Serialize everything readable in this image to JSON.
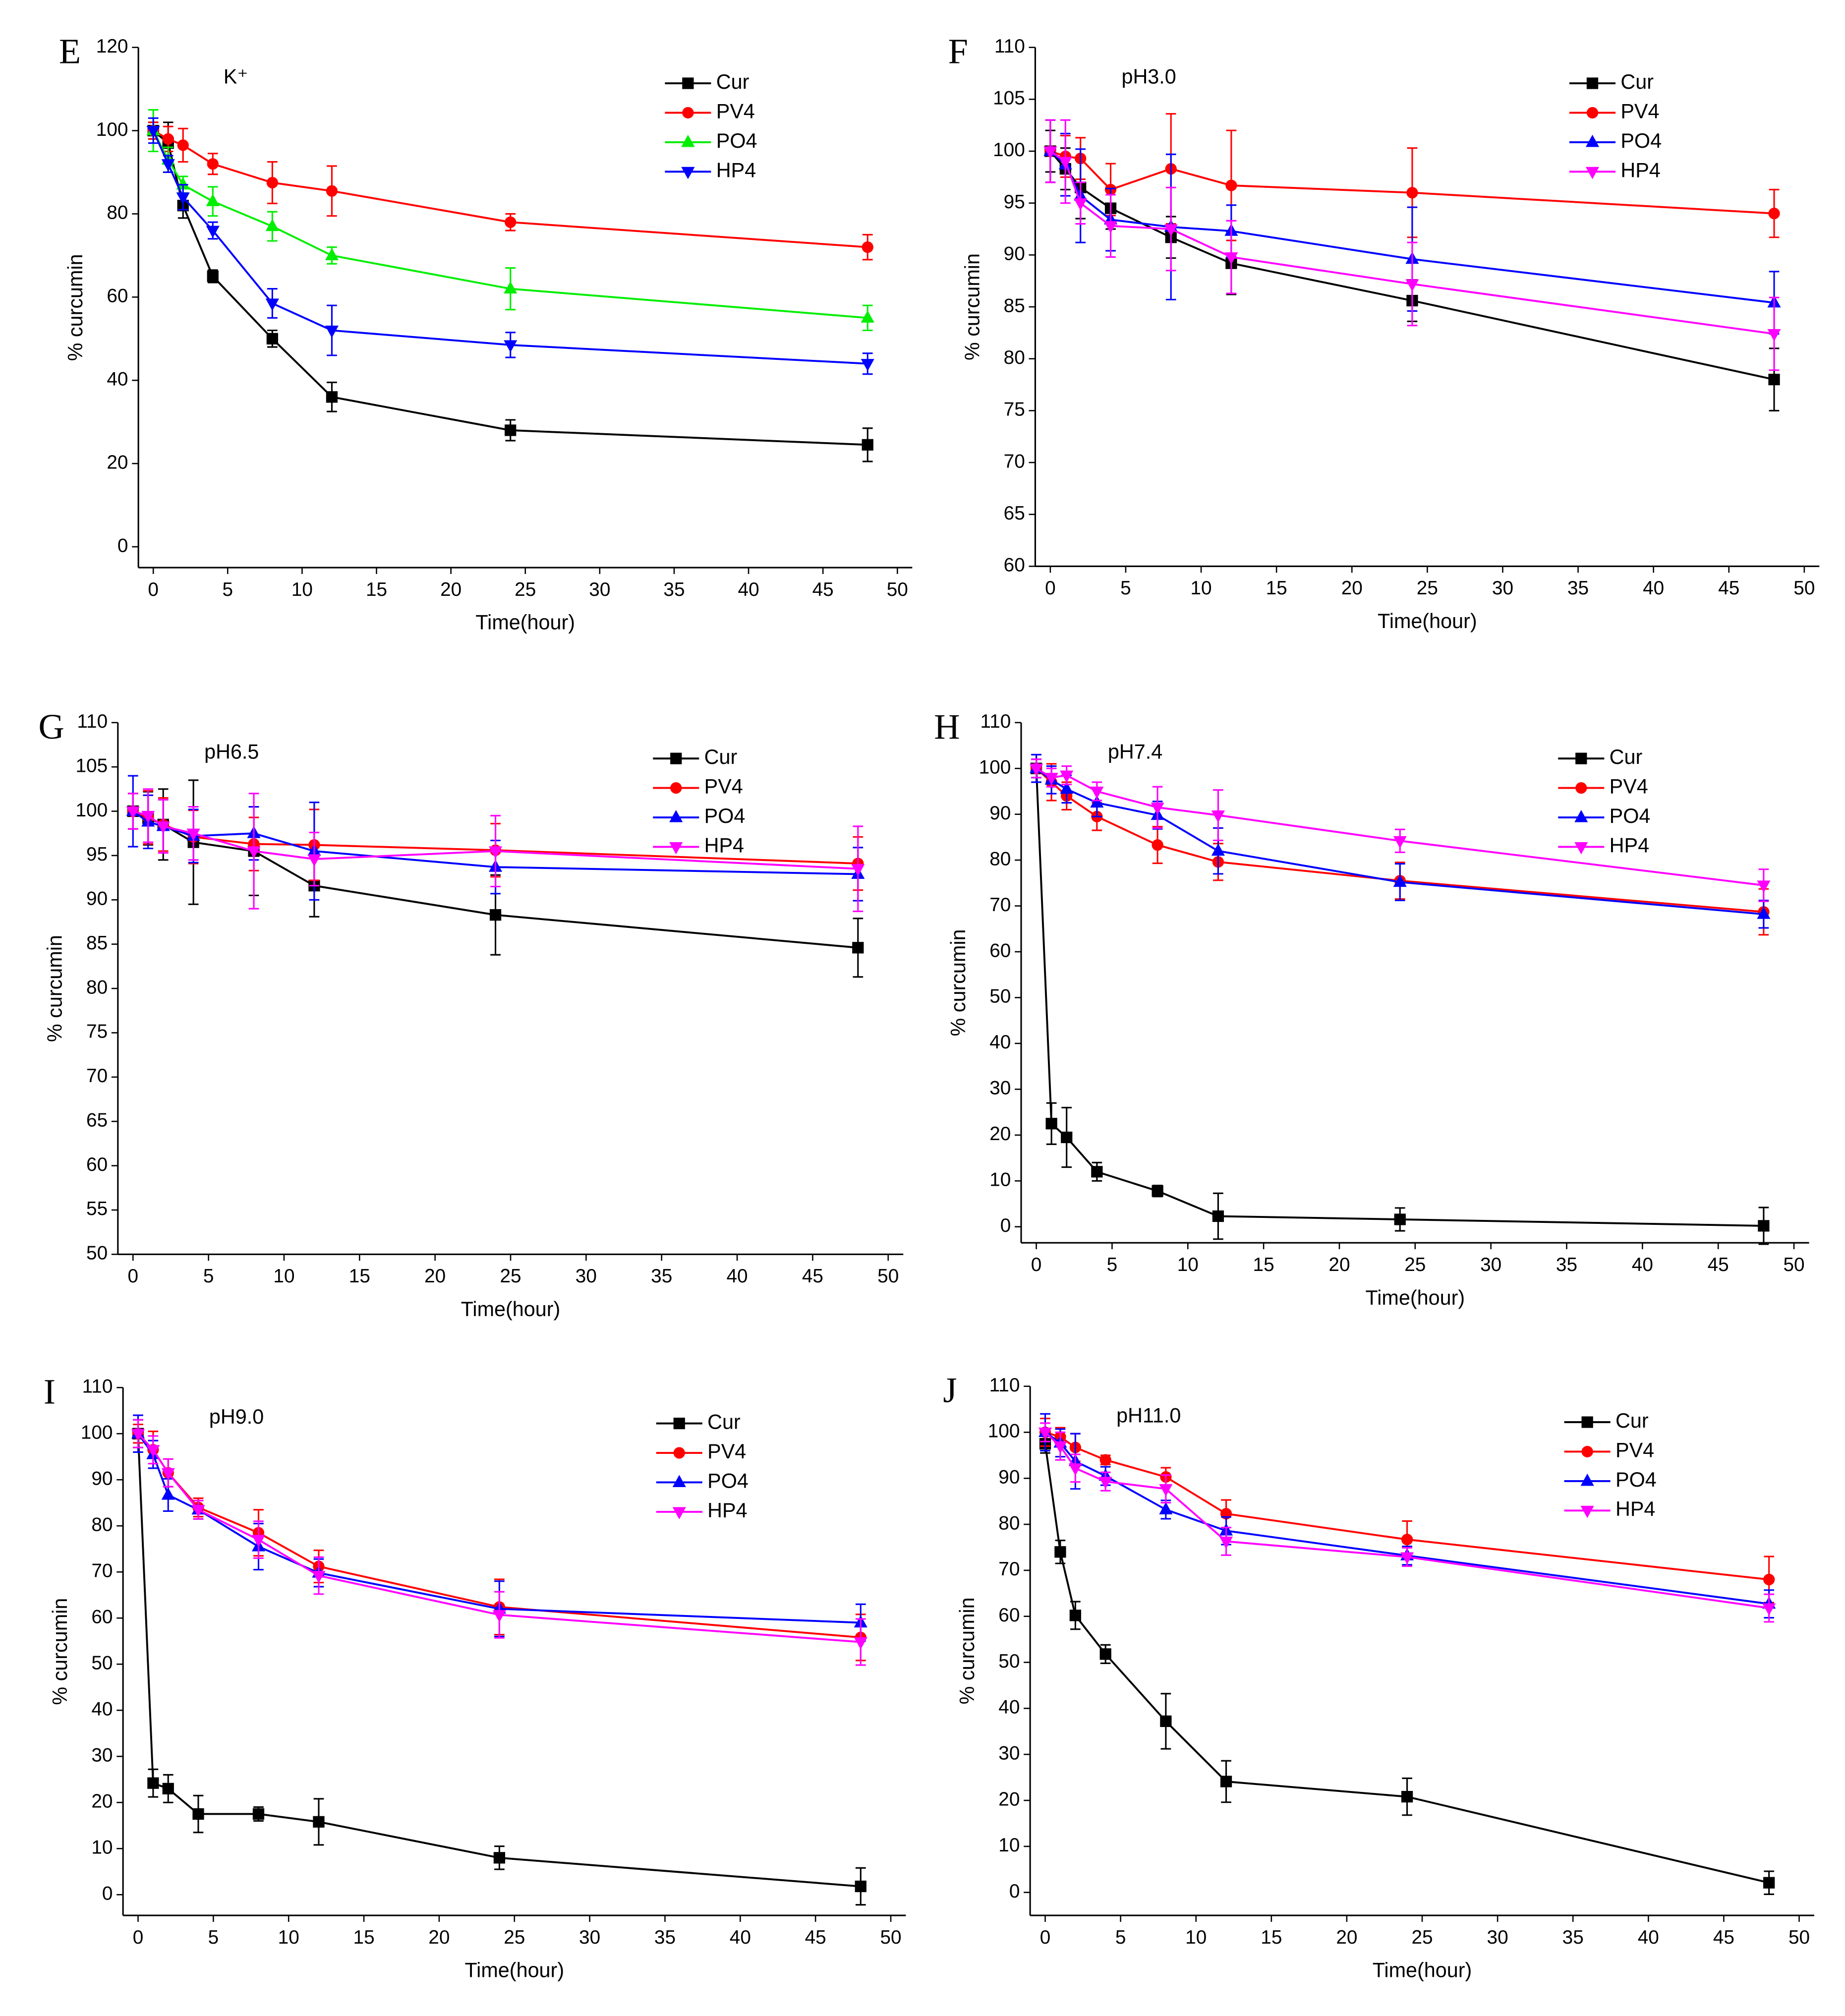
{
  "chart_data": [
    {
      "type": "line",
      "panel": "E",
      "annotation": "K⁺",
      "xlabel": "Time(hour)",
      "ylabel": "% curcumin",
      "x": [
        0,
        1,
        2,
        4,
        8,
        12,
        24,
        48
      ],
      "xlim": [
        -1,
        51
      ],
      "ylim": [
        -5,
        120
      ],
      "xticks": [
        0,
        5,
        10,
        15,
        20,
        25,
        30,
        35,
        40,
        45,
        50
      ],
      "yticks": [
        0,
        20,
        40,
        60,
        80,
        100,
        120
      ],
      "legend": "upper right",
      "series": [
        {
          "name": "Cur",
          "color": "#000000",
          "marker": "square",
          "values": [
            100,
            97,
            82,
            65,
            50,
            36,
            28,
            24.5
          ],
          "errors": [
            2,
            5,
            3,
            1.5,
            2,
            3.5,
            2.5,
            4
          ]
        },
        {
          "name": "PV4",
          "color": "#ff0000",
          "marker": "circle",
          "values": [
            100,
            98,
            96.5,
            92,
            87.5,
            85.5,
            78,
            72
          ],
          "errors": [
            2,
            3,
            4,
            2.5,
            5,
            6,
            2,
            3
          ]
        },
        {
          "name": "PO4",
          "color": "#00ee00",
          "marker": "triangle-up",
          "values": [
            100,
            93,
            87,
            83,
            77,
            70,
            62,
            55
          ],
          "errors": [
            5,
            3,
            2,
            3.5,
            3.5,
            2,
            5,
            3
          ]
        },
        {
          "name": "HP4",
          "color": "#0000ff",
          "marker": "triangle-down",
          "values": [
            100,
            92,
            84,
            76,
            58.5,
            52,
            48.5,
            44
          ],
          "errors": [
            3,
            2,
            3,
            2,
            3.5,
            6,
            3,
            2.5
          ]
        }
      ]
    },
    {
      "type": "line",
      "panel": "F",
      "annotation": "pH3.0",
      "xlabel": "Time(hour)",
      "ylabel": "% curcumin",
      "x": [
        0,
        1,
        2,
        4,
        8,
        12,
        24,
        48
      ],
      "xlim": [
        -1,
        51
      ],
      "ylim": [
        60,
        110
      ],
      "xticks": [
        0,
        5,
        10,
        15,
        20,
        25,
        30,
        35,
        40,
        45,
        50
      ],
      "yticks": [
        60,
        65,
        70,
        75,
        80,
        85,
        90,
        95,
        100,
        105,
        110
      ],
      "legend": "upper right",
      "series": [
        {
          "name": "Cur",
          "color": "#000000",
          "marker": "square",
          "values": [
            100,
            98.3,
            96.5,
            94.5,
            91.7,
            89.2,
            85.6,
            78
          ],
          "errors": [
            2,
            2,
            3,
            2,
            2,
            3,
            2,
            3
          ]
        },
        {
          "name": "PV4",
          "color": "#ff0000",
          "marker": "circle",
          "values": [
            100,
            99.5,
            99.3,
            96.3,
            98.3,
            96.7,
            96,
            94
          ],
          "errors": [
            3,
            2,
            2,
            2.5,
            5.3,
            5.3,
            4.3,
            2.3
          ]
        },
        {
          "name": "PO4",
          "color": "#0000ff",
          "marker": "triangle-up",
          "values": [
            100,
            98.7,
            95.7,
            93.4,
            92.7,
            92.3,
            89.6,
            85.4
          ],
          "errors": [
            3,
            3,
            4.5,
            3,
            7,
            2.5,
            5,
            3
          ]
        },
        {
          "name": "HP4",
          "color": "#ff00ff",
          "marker": "triangle-down",
          "values": [
            100,
            99,
            95,
            92.8,
            92.5,
            89.8,
            87.2,
            82.4
          ],
          "errors": [
            3,
            4,
            2,
            3,
            4,
            3.5,
            4,
            3.5
          ]
        }
      ]
    },
    {
      "type": "line",
      "panel": "G",
      "annotation": "pH6.5",
      "xlabel": "Time(hour)",
      "ylabel": "% curcumin",
      "x": [
        0,
        1,
        2,
        4,
        8,
        12,
        24,
        48
      ],
      "xlim": [
        -1,
        51
      ],
      "ylim": [
        50,
        110
      ],
      "xticks": [
        0,
        5,
        10,
        15,
        20,
        25,
        30,
        35,
        40,
        45,
        50
      ],
      "yticks": [
        50,
        55,
        60,
        65,
        70,
        75,
        80,
        85,
        90,
        95,
        100,
        105,
        110
      ],
      "legend": "upper right",
      "series": [
        {
          "name": "Cur",
          "color": "#000000",
          "marker": "square",
          "values": [
            100,
            99.2,
            98.5,
            96.5,
            95.5,
            91.6,
            88.3,
            84.6
          ],
          "errors": [
            2,
            3,
            4,
            7,
            5,
            3.5,
            4.5,
            3.3
          ]
        },
        {
          "name": "PV4",
          "color": "#ff0000",
          "marker": "circle",
          "values": [
            100,
            99.3,
            98.5,
            97.1,
            96.3,
            96.2,
            95.6,
            94.1
          ],
          "errors": [
            2,
            3,
            3,
            3,
            3,
            4,
            3,
            3
          ]
        },
        {
          "name": "PO4",
          "color": "#0000ff",
          "marker": "triangle-up",
          "values": [
            100,
            98.8,
            98.3,
            97.2,
            97.5,
            95.5,
            93.7,
            92.9
          ],
          "errors": [
            4,
            3,
            3,
            3,
            3,
            5.5,
            3,
            3
          ]
        },
        {
          "name": "HP4",
          "color": "#ff00ff",
          "marker": "triangle-down",
          "values": [
            100,
            99.5,
            98.3,
            97.5,
            95.5,
            94.6,
            95.5,
            93.5
          ],
          "errors": [
            2,
            3,
            3,
            3,
            6.5,
            3,
            4,
            4.8
          ]
        }
      ]
    },
    {
      "type": "line",
      "panel": "H",
      "annotation": "pH7.4",
      "xlabel": "Time(hour)",
      "ylabel": "% curcumin",
      "x": [
        0,
        1,
        2,
        4,
        8,
        12,
        24,
        48
      ],
      "xlim": [
        -1,
        51
      ],
      "ylim": [
        -3.5,
        110
      ],
      "xticks": [
        0,
        5,
        10,
        15,
        20,
        25,
        30,
        35,
        40,
        45,
        50
      ],
      "yticks": [
        0,
        10,
        20,
        30,
        40,
        50,
        60,
        70,
        80,
        90,
        100,
        110
      ],
      "legend": "upper right",
      "series": [
        {
          "name": "Cur",
          "color": "#000000",
          "marker": "square",
          "values": [
            100,
            22.5,
            19.5,
            12,
            7.8,
            2.3,
            1.6,
            0.2
          ],
          "errors": [
            2,
            4.5,
            6.5,
            2,
            1.2,
            5,
            2.5,
            4
          ]
        },
        {
          "name": "PV4",
          "color": "#ff0000",
          "marker": "circle",
          "values": [
            100,
            97,
            94,
            89.5,
            83.3,
            79.6,
            75.5,
            68.7
          ],
          "errors": [
            3,
            4,
            3,
            3,
            4,
            4,
            4,
            5
          ]
        },
        {
          "name": "PO4",
          "color": "#0000ff",
          "marker": "triangle-up",
          "values": [
            100,
            97.5,
            95.5,
            92.5,
            89.8,
            82,
            75.2,
            68.2
          ],
          "errors": [
            3,
            3,
            3,
            3,
            3,
            5,
            4,
            3
          ]
        },
        {
          "name": "HP4",
          "color": "#ff00ff",
          "marker": "triangle-down",
          "values": [
            100,
            98,
            98.5,
            95,
            91.5,
            89.8,
            84.2,
            74.5
          ],
          "errors": [
            2,
            2,
            2,
            2,
            4.5,
            5.5,
            2.5,
            3.5
          ]
        }
      ]
    },
    {
      "type": "line",
      "panel": "I",
      "annotation": "pH9.0",
      "xlabel": "Time(hour)",
      "ylabel": "% curcumin",
      "x": [
        0,
        1,
        2,
        4,
        8,
        12,
        24,
        48
      ],
      "xlim": [
        -1,
        51
      ],
      "ylim": [
        -4.5,
        110
      ],
      "xticks": [
        0,
        5,
        10,
        15,
        20,
        25,
        30,
        35,
        40,
        45,
        50
      ],
      "yticks": [
        0,
        10,
        20,
        30,
        40,
        50,
        60,
        70,
        80,
        90,
        100,
        110
      ],
      "legend": "upper right",
      "series": [
        {
          "name": "Cur",
          "color": "#000000",
          "marker": "square",
          "values": [
            100,
            24.2,
            23,
            17.5,
            17.5,
            15.8,
            8,
            1.8
          ],
          "errors": [
            3,
            3,
            3,
            4,
            1.5,
            5,
            2.5,
            4
          ]
        },
        {
          "name": "PV4",
          "color": "#ff0000",
          "marker": "circle",
          "values": [
            100,
            96.5,
            91.5,
            84,
            78.5,
            71.2,
            62.4,
            55.8
          ],
          "errors": [
            2,
            4,
            3,
            2,
            5,
            3.5,
            6,
            5
          ]
        },
        {
          "name": "PO4",
          "color": "#0000ff",
          "marker": "triangle-up",
          "values": [
            100,
            95.5,
            86.7,
            83.5,
            75.5,
            69.8,
            62,
            59
          ],
          "errors": [
            4,
            3,
            3.5,
            2,
            5,
            3,
            6,
            4
          ]
        },
        {
          "name": "HP4",
          "color": "#ff00ff",
          "marker": "triangle-down",
          "values": [
            100,
            96.5,
            91.5,
            83.5,
            77,
            69.2,
            60.7,
            54.8
          ],
          "errors": [
            3,
            3,
            3,
            2,
            4,
            4,
            5,
            5
          ]
        }
      ]
    },
    {
      "type": "line",
      "panel": "J",
      "annotation": "pH11.0",
      "xlabel": "Time(hour)",
      "ylabel": "% curcumin",
      "x": [
        0,
        1,
        2,
        4,
        8,
        12,
        24,
        48
      ],
      "xlim": [
        -1,
        51
      ],
      "ylim": [
        -5,
        110
      ],
      "xticks": [
        0,
        5,
        10,
        15,
        20,
        25,
        30,
        35,
        40,
        45,
        50
      ],
      "yticks": [
        0,
        10,
        20,
        30,
        40,
        50,
        60,
        70,
        80,
        90,
        100,
        110
      ],
      "legend": "upper right",
      "series": [
        {
          "name": "Cur",
          "color": "#000000",
          "marker": "square",
          "values": [
            97.5,
            74,
            60.2,
            51.8,
            37.2,
            24.1,
            20.8,
            2.1
          ],
          "errors": [
            2,
            2.5,
            3,
            2,
            6,
            4.5,
            4,
            2.5
          ]
        },
        {
          "name": "PV4",
          "color": "#ff0000",
          "marker": "circle",
          "values": [
            100,
            99,
            96.7,
            94,
            90.3,
            82.3,
            76.7,
            68
          ],
          "errors": [
            3,
            2,
            3,
            1,
            2,
            3,
            4,
            5
          ]
        },
        {
          "name": "PO4",
          "color": "#0000ff",
          "marker": "triangle-up",
          "values": [
            100,
            97.7,
            93.7,
            90.5,
            83.2,
            78.6,
            73.2,
            62.7
          ],
          "errors": [
            4,
            3,
            6,
            2,
            2,
            3,
            2,
            3
          ]
        },
        {
          "name": "HP4",
          "color": "#ff00ff",
          "marker": "triangle-down",
          "values": [
            100,
            97,
            92.2,
            89.3,
            87.7,
            76.3,
            72.9,
            61.8
          ],
          "errors": [
            2,
            3,
            3,
            2,
            3,
            3,
            2,
            3
          ]
        }
      ]
    }
  ]
}
